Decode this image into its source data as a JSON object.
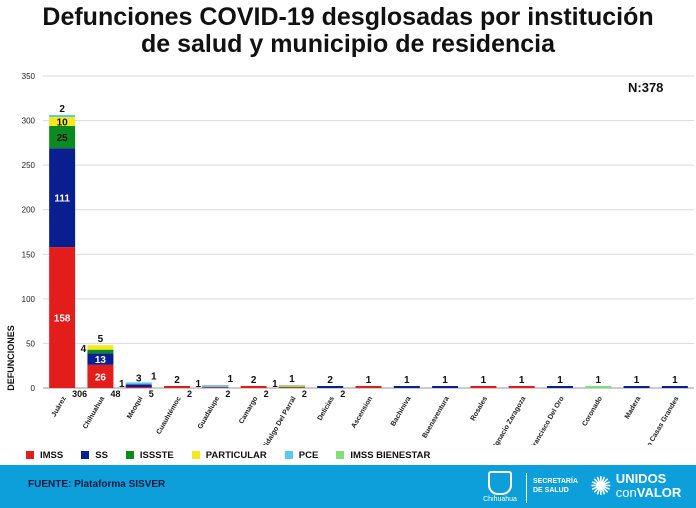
{
  "title_line1": "Defunciones COVID-19 desglosadas por institución",
  "title_line2": "de salud y municipio de residencia",
  "n_label": "N:378",
  "chart_data": {
    "type": "bar",
    "stacked": true,
    "ylabel": "DEFUNCIONES",
    "yticks": [
      0,
      50,
      100,
      150,
      200,
      250,
      300,
      350
    ],
    "ylim": [
      0,
      350
    ],
    "categories": [
      "Juárez",
      "Chihuahua",
      "Meoqui",
      "Cuauhtémoc",
      "Guadalupe",
      "Camargo",
      "Hidalgo Del Parral",
      "Delicias",
      "Ascension",
      "Bachiniva",
      "Buenaventura",
      "Rosales",
      "Ignacio Zaragoza",
      "San Francisco Del Oro",
      "Coronado",
      "Madera",
      "Nuevo Casas Grandes"
    ],
    "series": [
      {
        "name": "IMSS",
        "color": "#e31c1c",
        "values": [
          158,
          26,
          1,
          2,
          1,
          2,
          1,
          0,
          1,
          0,
          0,
          1,
          1,
          0,
          0,
          0,
          0
        ]
      },
      {
        "name": "SS",
        "color": "#0a1f8f",
        "values": [
          111,
          13,
          3,
          0,
          0,
          0,
          0,
          2,
          0,
          1,
          1,
          0,
          0,
          1,
          0,
          1,
          1
        ]
      },
      {
        "name": "ISSSTE",
        "color": "#0a8a1f",
        "values": [
          25,
          4,
          0,
          0,
          0,
          0,
          0,
          0,
          0,
          0,
          0,
          0,
          0,
          0,
          0,
          0,
          0
        ]
      },
      {
        "name": "PARTICULAR",
        "color": "#f7e81d",
        "values": [
          10,
          5,
          0,
          0,
          0,
          0,
          0,
          0,
          0,
          0,
          0,
          0,
          0,
          0,
          0,
          0,
          0
        ]
      },
      {
        "name": "PCE",
        "color": "#5cc8f0",
        "values": [
          2,
          0,
          1,
          0,
          1,
          0,
          0,
          0,
          0,
          0,
          0,
          0,
          0,
          0,
          0,
          0,
          0
        ]
      },
      {
        "name": "IMSS BIENESTAR",
        "color": "#7fe07a",
        "values": [
          0,
          0,
          0,
          0,
          0,
          0,
          1,
          0,
          0,
          0,
          0,
          0,
          0,
          0,
          1,
          0,
          0
        ]
      }
    ],
    "segment_labels": [
      {
        "cat": 0,
        "text": "158",
        "series": "IMSS"
      },
      {
        "cat": 0,
        "text": "111",
        "series": "SS"
      },
      {
        "cat": 0,
        "text": "25",
        "series": "ISSSTE"
      },
      {
        "cat": 0,
        "text": "10",
        "series": "PARTICULAR"
      },
      {
        "cat": 0,
        "text": "2",
        "series": "PCE",
        "pos": "above"
      },
      {
        "cat": 1,
        "text": "26",
        "series": "IMSS"
      },
      {
        "cat": 1,
        "text": "13",
        "series": "SS"
      },
      {
        "cat": 1,
        "text": "4",
        "series": "ISSSTE",
        "pos": "left"
      },
      {
        "cat": 1,
        "text": "5",
        "series": "PARTICULAR",
        "pos": "above"
      },
      {
        "cat": 2,
        "text": "1",
        "series": "IMSS",
        "pos": "left"
      },
      {
        "cat": 2,
        "text": "3",
        "series": "SS",
        "pos": "above"
      },
      {
        "cat": 2,
        "text": "1",
        "series": "PCE",
        "pos": "aboveRight"
      },
      {
        "cat": 3,
        "text": "2",
        "series": "IMSS",
        "pos": "above"
      },
      {
        "cat": 4,
        "text": "1",
        "series": "IMSS",
        "pos": "left"
      },
      {
        "cat": 4,
        "text": "1",
        "series": "PCE",
        "pos": "aboveRight"
      },
      {
        "cat": 5,
        "text": "2",
        "series": "IMSS",
        "pos": "above"
      },
      {
        "cat": 6,
        "text": "1",
        "series": "IMSS",
        "pos": "left"
      },
      {
        "cat": 6,
        "text": "1",
        "series": "IMSS BIENESTAR",
        "pos": "above"
      },
      {
        "cat": 7,
        "text": "2",
        "series": "SS",
        "pos": "above"
      },
      {
        "cat": 8,
        "text": "1",
        "series": "IMSS",
        "pos": "above"
      },
      {
        "cat": 9,
        "text": "1",
        "series": "SS",
        "pos": "above"
      },
      {
        "cat": 10,
        "text": "1",
        "series": "SS",
        "pos": "above"
      },
      {
        "cat": 11,
        "text": "1",
        "series": "IMSS",
        "pos": "above"
      },
      {
        "cat": 12,
        "text": "1",
        "series": "IMSS",
        "pos": "above"
      },
      {
        "cat": 13,
        "text": "1",
        "series": "SS",
        "pos": "above"
      },
      {
        "cat": 14,
        "text": "1",
        "series": "IMSS BIENESTAR",
        "pos": "above"
      },
      {
        "cat": 15,
        "text": "1",
        "series": "SS",
        "pos": "above"
      },
      {
        "cat": 16,
        "text": "1",
        "series": "SS",
        "pos": "above"
      }
    ],
    "totals": [
      "306",
      "48",
      "5",
      "2",
      "2",
      "2",
      "2",
      "2",
      "",
      "",
      "",
      "",
      "",
      "",
      "",
      "",
      ""
    ]
  },
  "legend": [
    {
      "label": "IMSS",
      "color": "#e31c1c"
    },
    {
      "label": "SS",
      "color": "#0a1f8f"
    },
    {
      "label": "ISSSTE",
      "color": "#0a8a1f"
    },
    {
      "label": "PARTICULAR",
      "color": "#f7e81d"
    },
    {
      "label": "PCE",
      "color": "#5cc8f0"
    },
    {
      "label": "IMSS BIENESTAR",
      "color": "#7fe07a"
    }
  ],
  "footer": {
    "source": "FUENTE: Plataforma SISVER",
    "logo_caption": "Chihuahua",
    "secretaria_line1": "SECRETARÍA",
    "secretaria_line2": "DE SALUD",
    "brand_line1": "UNIDOS",
    "brand_line2a": "con",
    "brand_line2b": "VALOR"
  }
}
